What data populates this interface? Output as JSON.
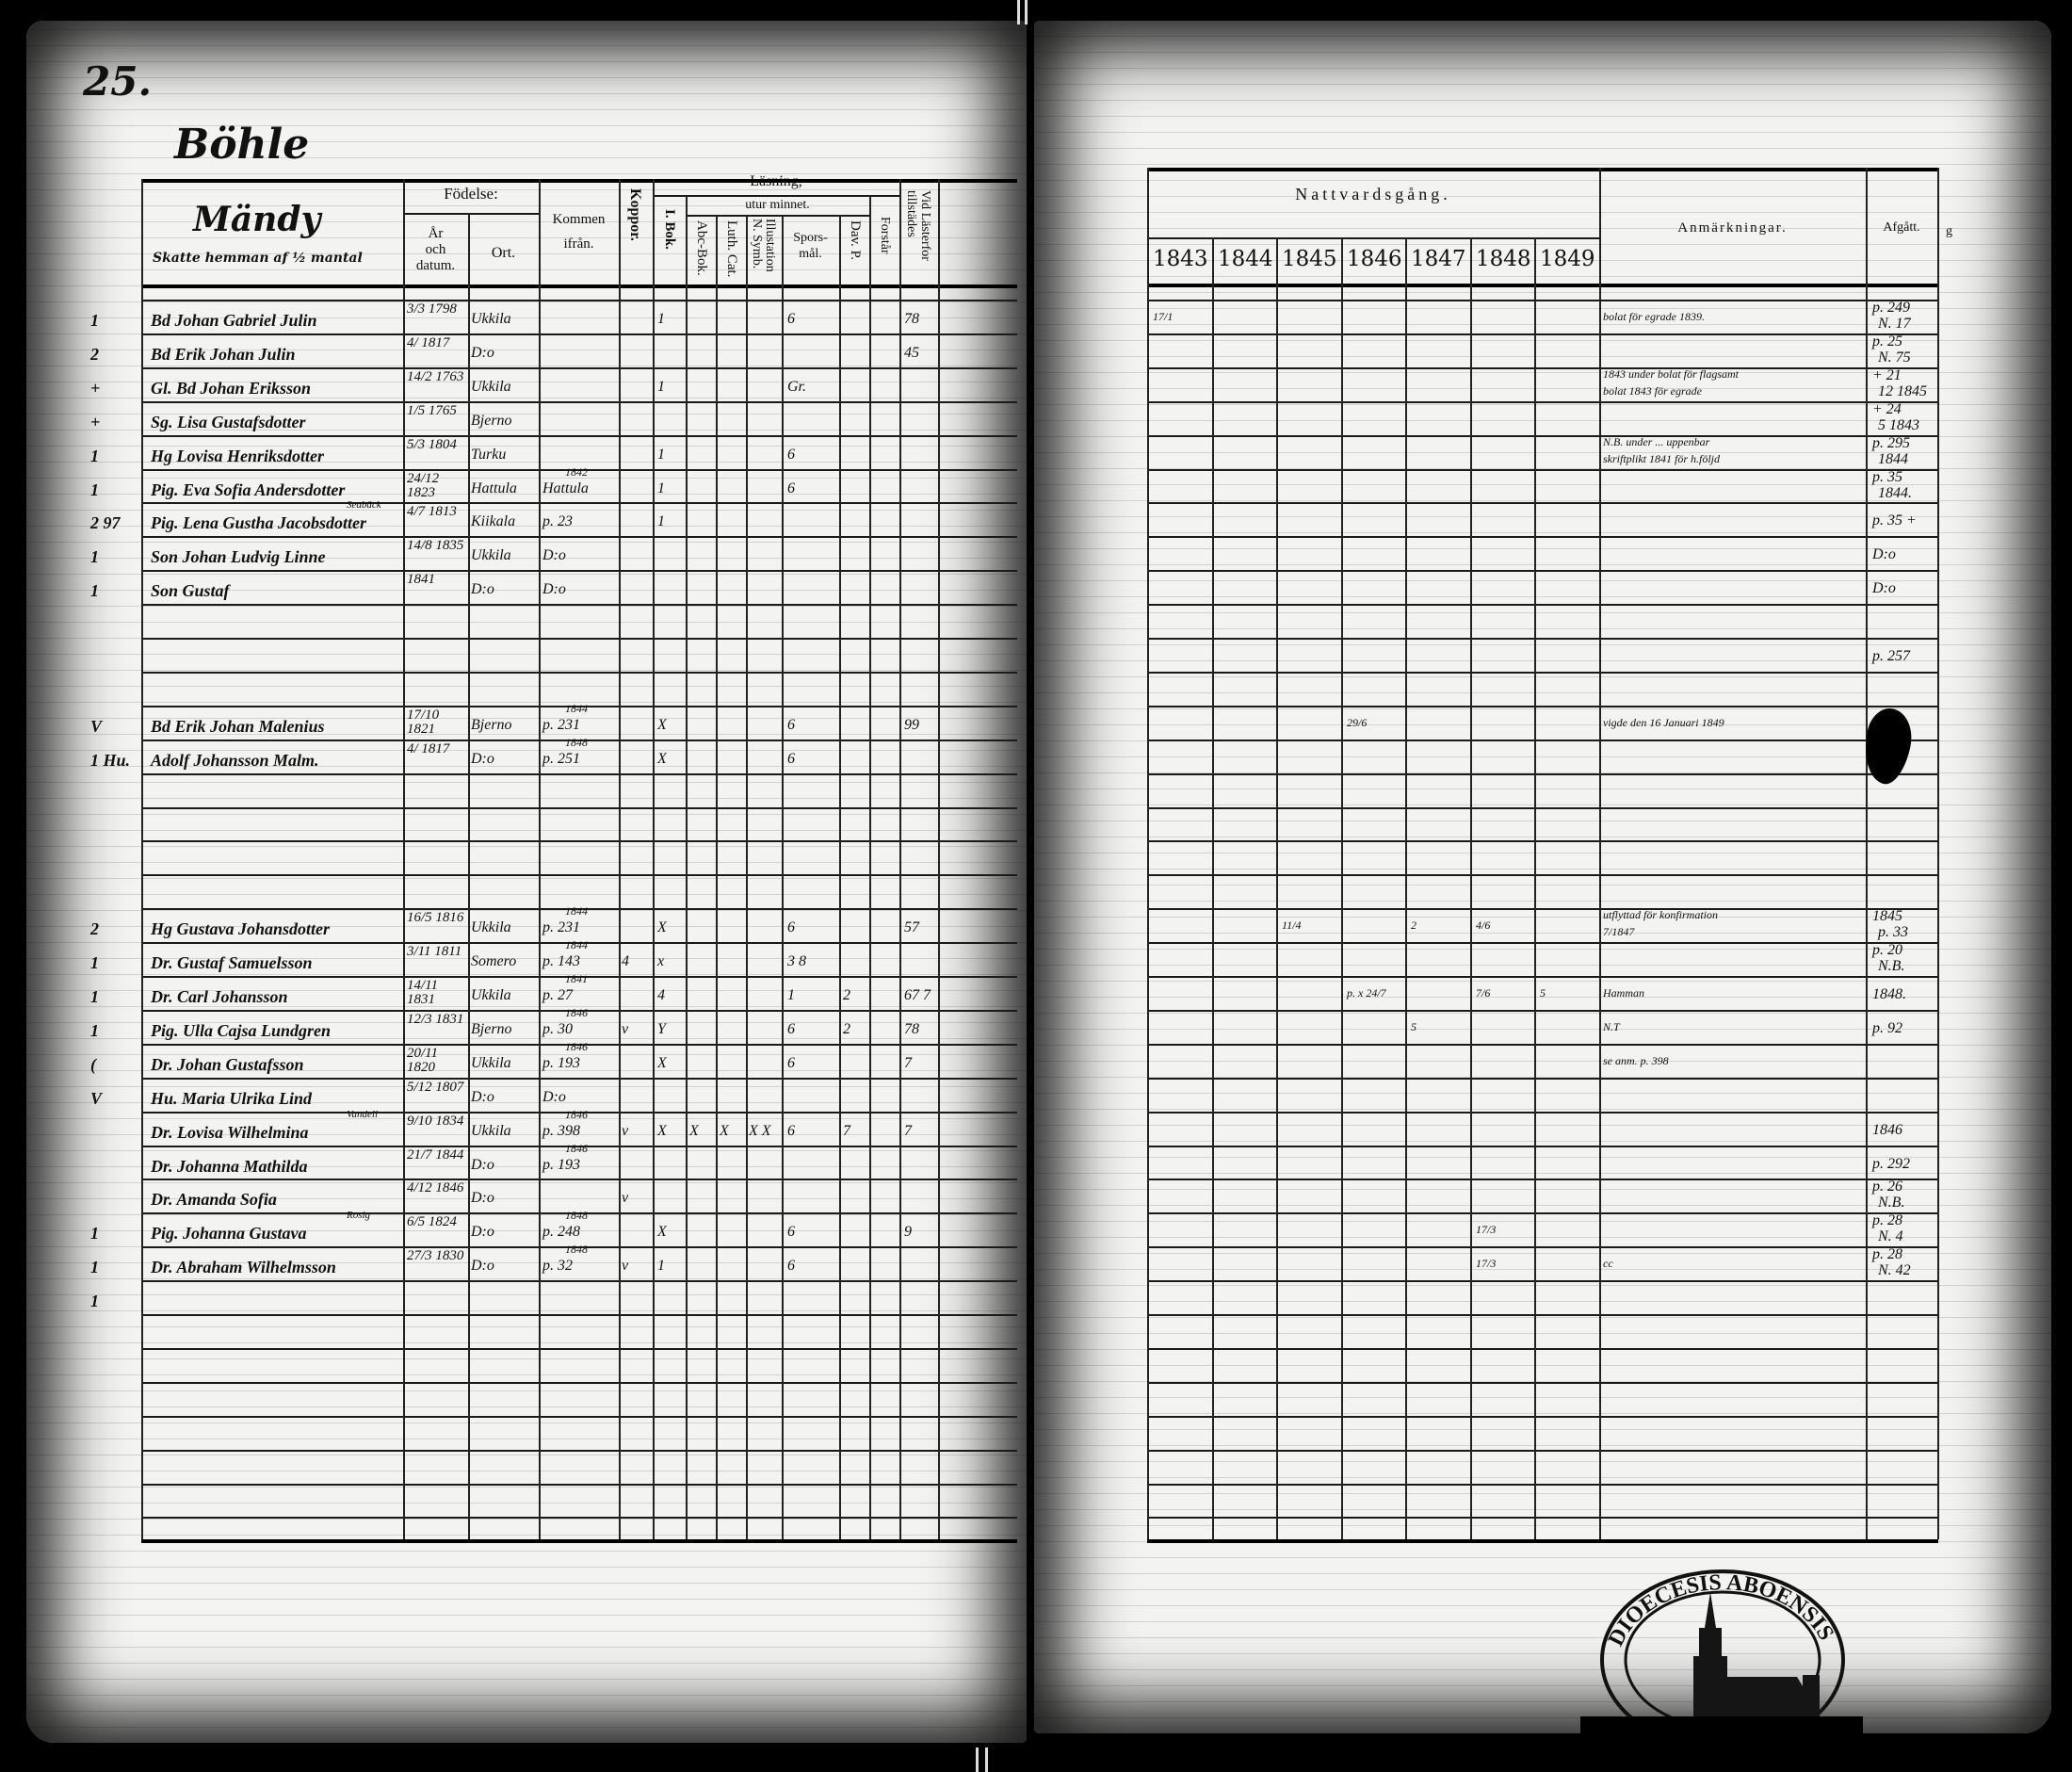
{
  "page_number": "25.",
  "village": "Böhle",
  "header": {
    "left_title": "Mändy",
    "left_subtitle": "Skatte hemman af ½ mantal",
    "fodelse": "Födelse:",
    "ar_och_datum": [
      "År",
      "och",
      "datum."
    ],
    "ort": "Ort.",
    "kommen": [
      "Kommen",
      "ifrån."
    ],
    "koppor": "Koppor.",
    "lasning": "Läsning,",
    "utur_minnet": "utur minnet.",
    "i_bok": "I. Bok.",
    "abc_bok": "Abc-Bok.",
    "luth_cat": "Luth. Cat.",
    "symb": [
      "Illustation",
      "N. Symb."
    ],
    "spors": [
      "Spors-",
      "mål."
    ],
    "dav": "Dav. P.",
    "forstar": "Forstår",
    "laster": [
      "Vid Lästerfor",
      "tillstädes"
    ],
    "nattvard": "Nattvardsgång.",
    "years": [
      "1843",
      "1844",
      "1845",
      "1846",
      "1847",
      "1848",
      "1849"
    ],
    "anmarkningar": "Anmärkningar.",
    "afgatt": "Afgått.",
    "extra": "g"
  },
  "rows": [
    {
      "margin": "1",
      "name": "Bd Johan Gabriel Julin",
      "born": "3/3 1798",
      "place": "Ukkila",
      "i_bok": "1",
      "spors": "6",
      "laster": "78",
      "nattvard": {
        "1843": "17/1"
      },
      "remark": "bolat för egrade 1839.",
      "afgatt": "p. 249",
      "afgatt2": "N. 17"
    },
    {
      "margin": "2",
      "name": "Bd Erik Johan Julin",
      "born": "4/ 1817",
      "place": "D:o",
      "laster": "45",
      "afgatt": "p. 25",
      "afgatt2": "N. 75"
    },
    {
      "margin": "+",
      "name": "Gl. Bd Johan Eriksson",
      "born": "14/2 1763",
      "place": "Ukkila",
      "i_bok": "1",
      "spors": "Gr.",
      "remark": "1843 under bolat för flagsamt",
      "remark2": "bolat 1843 för egrade",
      "afgatt": "+ 21",
      "afgatt2": "12 1845"
    },
    {
      "margin": "+",
      "name": "Sg. Lisa Gustafsdotter",
      "born": "1/5 1765",
      "place": "Bjerno",
      "afgatt": "+ 24",
      "afgatt2": "5 1843"
    },
    {
      "margin": "1",
      "name": "Hg Lovisa Henriksdotter",
      "born": "5/3 1804",
      "place": "Turku",
      "i_bok": "1",
      "spors": "6",
      "remark": "N.B. under ... uppenbar",
      "remark2": "skriftplikt 1841 för h.följd",
      "afgatt": "p. 295",
      "afgatt2": "1844"
    },
    {
      "margin": "1",
      "name": "Pig. Eva Sofia Andersdotter",
      "born": "24/12 1823",
      "place": "Hattula",
      "from_year": "1842",
      "from": "Hattula",
      "i_bok": "1",
      "spors": "6",
      "afgatt": "p. 35",
      "afgatt2": "1844."
    },
    {
      "margin": "2 97",
      "name": "Pig. Lena Gustha Jacobsdotter",
      "name_note": "Seabäck",
      "born": "4/7 1813",
      "place": "Kiikala",
      "from": "p. 23",
      "i_bok": "1",
      "afgatt": "p. 35 +"
    },
    {
      "margin": "1",
      "name": "Son Johan Ludvig Linne",
      "born": "14/8 1835",
      "place": "Ukkila",
      "from": "D:o",
      "afgatt": "D:o"
    },
    {
      "margin": "1",
      "name": "Son Gustaf",
      "born": "1841",
      "place": "D:o",
      "from": "D:o",
      "afgatt": "D:o"
    },
    {},
    {
      "afgatt": "p. 257"
    },
    {},
    {
      "margin": "V",
      "name": "Bd Erik Johan Malenius",
      "born": "17/10 1821",
      "place": "Bjerno",
      "from_year": "1844",
      "from": "p. 231",
      "i_bok": "X",
      "spors": "6",
      "laster": "99",
      "nattvard": {
        "1846": "29/6"
      },
      "remark": "vigde den 16 Januari 1849"
    },
    {
      "margin": "1 Hu.",
      "name": "Adolf Johansson Malm.",
      "born": "4/ 1817",
      "place": "D:o",
      "from_year": "1848",
      "from": "p. 251",
      "i_bok": "X",
      "spors": "6"
    },
    {},
    {},
    {},
    {},
    {
      "margin": "2",
      "name": "Hg Gustava Johansdotter",
      "born": "16/5 1816",
      "place": "Ukkila",
      "from_year": "1844",
      "from": "p. 231",
      "i_bok": "X",
      "spors": "6",
      "laster": "57",
      "nattvard": {
        "1845": "11/4",
        "1847": "2",
        "1848": "4/6"
      },
      "remark": "utflyttad för konfirmation",
      "remark2": "7/1847",
      "afgatt": "1845",
      "afgatt2": "p. 33"
    },
    {
      "margin": "1",
      "name": "Dr. Gustaf Samuelsson",
      "born": "3/11 1811",
      "place": "Somero",
      "from_year": "1844",
      "from": "p. 143",
      "koppor": "4",
      "i_bok": "x",
      "spors": "3 8",
      "afgatt": "p. 20",
      "afgatt2": "N.B."
    },
    {
      "margin": "1",
      "name": "Dr. Carl Johansson",
      "born": "14/11 1831",
      "place": "Ukkila",
      "from_year": "1841",
      "from": "p. 27",
      "i_bok": "4",
      "spors": "1",
      "dav": "2",
      "laster": "67 7",
      "nattvard": {
        "1846": "p. x 24/7",
        "1848": "7/6",
        "1849": "5"
      },
      "remark": "Hamman",
      "afgatt": "1848."
    },
    {
      "margin": "1",
      "name": "Pig. Ulla Cajsa Lundgren",
      "born": "12/3 1831",
      "place": "Bjerno",
      "from_year": "1846",
      "from": "p. 30",
      "koppor": "v",
      "i_bok": "Y",
      "spors": "6",
      "dav": "2",
      "laster": "78",
      "nattvard": {
        "1847": "5"
      },
      "remark": "N.T",
      "afgatt": "p. 92"
    },
    {
      "margin": "(",
      "name": "Dr. Johan Gustafsson",
      "born": "20/11 1820",
      "place": "Ukkila",
      "from_year": "1846",
      "from": "p. 193",
      "i_bok": "X",
      "spors": "6",
      "laster": "7",
      "remark": "se anm. p. 398"
    },
    {
      "margin": "V",
      "name": "Hu. Maria Ulrika Lind",
      "born": "5/12 1807",
      "place": "D:o",
      "from": "D:o"
    },
    {
      "name": "Dr. Lovisa Wilhelmina",
      "name_note": "Vandell",
      "born": "9/10 1834",
      "place": "Ukkila",
      "from_year": "1846",
      "from": "p. 398",
      "koppor": "v",
      "i_bok": "X",
      "abc_bok": "X",
      "luth_cat": "X",
      "symb": "X X",
      "spors": "6",
      "dav": "7",
      "laster": "7",
      "afgatt": "1846"
    },
    {
      "name": "Dr. Johanna Mathilda",
      "born": "21/7 1844",
      "place": "D:o",
      "from_year": "1846",
      "from": "p. 193",
      "afgatt": "p. 292"
    },
    {
      "name": "Dr. Amanda Sofia",
      "born": "4/12 1846",
      "place": "D:o",
      "koppor": "v",
      "afgatt": "p. 26",
      "afgatt2": "N.B."
    },
    {
      "margin": "1",
      "name": "Pig. Johanna Gustava",
      "name_note": "Rosig",
      "born": "6/5 1824",
      "place": "D:o",
      "from_year": "1848",
      "from": "p. 248",
      "i_bok": "X",
      "spors": "6",
      "laster": "9",
      "nattvard": {
        "1848": "17/3"
      },
      "afgatt": "p. 28",
      "afgatt2": "N. 4"
    },
    {
      "margin": "1",
      "name": "Dr. Abraham Wilhelmsson",
      "born": "27/3 1830",
      "place": "D:o",
      "from_year": "1848",
      "from": "p. 32",
      "koppor": "v",
      "i_bok": "1",
      "spors": "6",
      "nattvard": {
        "1848": "17/3"
      },
      "remark": "cc",
      "afgatt": "p. 28",
      "afgatt2": "N. 42"
    },
    {
      "margin": "1"
    },
    {},
    {},
    {},
    {},
    {},
    {}
  ],
  "seal_text": "DIOECESIS ABOENSIS",
  "colors": {
    "background": "#000000",
    "paper": "#f3f3f1",
    "ink": "#111111"
  }
}
